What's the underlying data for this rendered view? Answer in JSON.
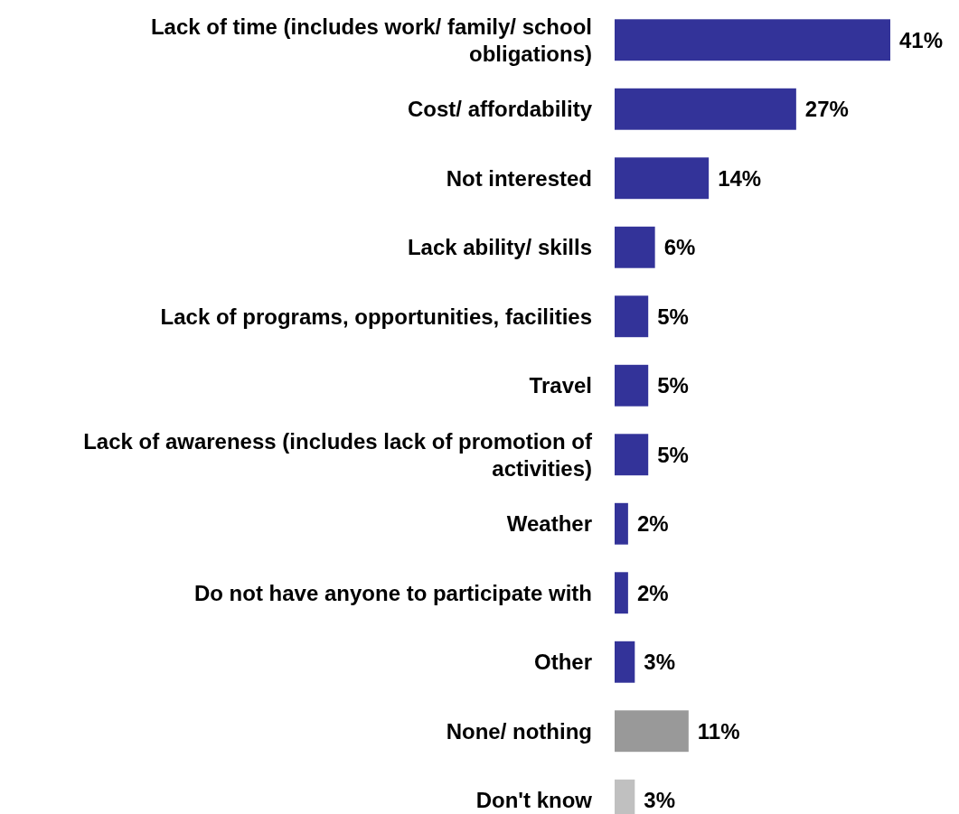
{
  "chart_data": {
    "type": "bar",
    "orientation": "horizontal",
    "categories": [
      "Lack of time (includes work/ family/ school obligations)",
      "Cost/ affordability",
      "Not interested",
      "Lack ability/ skills",
      "Lack of programs, opportunities, facilities",
      "Travel",
      "Lack of awareness (includes lack of promotion of activities)",
      "Weather",
      "Do not have anyone to participate with",
      "Other",
      "None/ nothing",
      "Don't know"
    ],
    "values": [
      41,
      27,
      14,
      6,
      5,
      5,
      5,
      2,
      2,
      3,
      11,
      3
    ],
    "value_labels": [
      "41%",
      "27%",
      "14%",
      "6%",
      "5%",
      "5%",
      "5%",
      "2%",
      "2%",
      "3%",
      "11%",
      "3%"
    ],
    "colors": [
      "#333399",
      "#333399",
      "#333399",
      "#333399",
      "#333399",
      "#333399",
      "#333399",
      "#333399",
      "#333399",
      "#333399",
      "#999999",
      "#c0c0c0"
    ]
  }
}
